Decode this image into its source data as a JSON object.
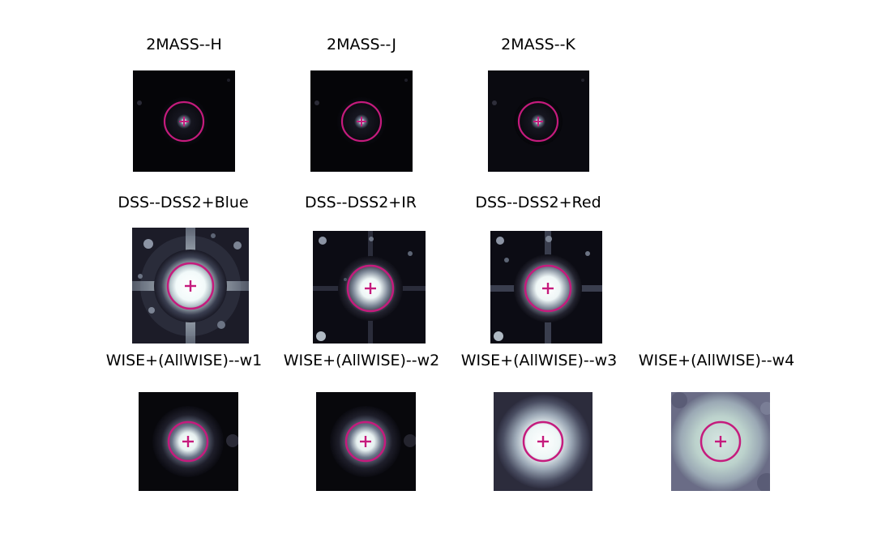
{
  "figure": {
    "marker_color": "#c51b7d",
    "colormap": "bone",
    "rows": [
      {
        "panels": [
          {
            "title": "2MASS--H",
            "key": "h"
          },
          {
            "title": "2MASS--J",
            "key": "j"
          },
          {
            "title": "2MASS--K",
            "key": "k"
          }
        ]
      },
      {
        "panels": [
          {
            "title": "DSS--DSS2+Blue",
            "key": "dss_blue"
          },
          {
            "title": "DSS--DSS2+IR",
            "key": "dss_ir"
          },
          {
            "title": "DSS--DSS2+Red",
            "key": "dss_red"
          }
        ]
      },
      {
        "panels": [
          {
            "title": "WISE+(AllWISE)--w1",
            "key": "w1"
          },
          {
            "title": "WISE+(AllWISE)--w2",
            "key": "w2"
          },
          {
            "title": "WISE+(AllWISE)--w3",
            "key": "w3"
          },
          {
            "title": "WISE+(AllWISE)--w4",
            "key": "w4"
          }
        ]
      }
    ]
  }
}
